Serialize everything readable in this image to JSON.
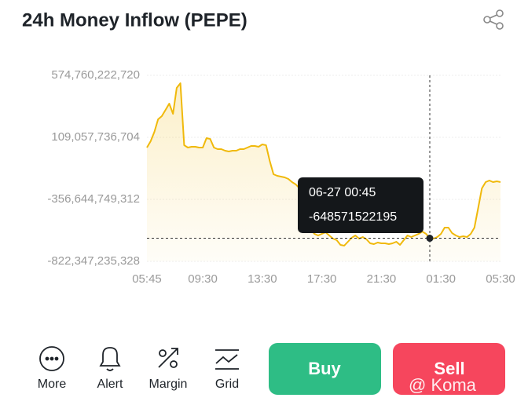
{
  "header": {
    "title": "24h Money Inflow (PEPE)"
  },
  "chart_data": {
    "type": "line",
    "ylim": [
      -822347235328,
      574760222720
    ],
    "yticks": [
      {
        "value": -822347235328,
        "label": "-822,347,235,328"
      },
      {
        "value": -356644749312,
        "label": "-356,644,749,312"
      },
      {
        "value": 109057736704,
        "label": "109,057,736,704"
      },
      {
        "value": 574760222720,
        "label": "574,760,222,720"
      }
    ],
    "grid": true,
    "categories": [
      "05:45",
      null,
      null,
      null,
      null,
      null,
      null,
      null,
      null,
      null,
      null,
      null,
      null,
      null,
      null,
      "09:30",
      null,
      null,
      null,
      null,
      null,
      null,
      null,
      null,
      null,
      null,
      null,
      null,
      null,
      null,
      null,
      "13:30",
      null,
      null,
      null,
      null,
      null,
      null,
      null,
      null,
      null,
      null,
      null,
      null,
      null,
      null,
      null,
      "17:30",
      null,
      null,
      null,
      null,
      null,
      null,
      null,
      null,
      null,
      null,
      null,
      null,
      null,
      null,
      null,
      "21:30",
      null,
      null,
      null,
      null,
      null,
      null,
      null,
      null,
      null,
      null,
      null,
      null,
      null,
      null,
      null,
      "01:30",
      null,
      null,
      null,
      null,
      null,
      null,
      null,
      null,
      null,
      null,
      null,
      null,
      null,
      null,
      null,
      "05:30"
    ],
    "series": [
      {
        "color": "#f0b90b",
        "values": [
          32400000000.0,
          79600000000.0,
          150400000000.0,
          244600000000.0,
          268200000000.0,
          315400000000.0,
          362500000000.0,
          285900000000.0,
          480400000000.0,
          515800000000.0,
          50100000000.0,
          32400000000.0,
          38300000000.0,
          38300000000.0,
          32400000000.0,
          32400000000.0,
          103200000000.0,
          97300000000.0,
          32400000000.0,
          20600000000.0,
          20600000000.0,
          8900000000.0,
          3000000000.0,
          8900000000.0,
          8900000000.0,
          20600000000.0,
          20600000000.0,
          32400000000.0,
          44200000000.0,
          44200000000.0,
          38300000000.0,
          56000000000.0,
          50100000000.0,
          -67800000000.0,
          -168000000000.0,
          -179800000000.0,
          -185700000000.0,
          -191600000000.0,
          -203400000000.0,
          -226900000000.0,
          -244600000000.0,
          -274100000000.0,
          -450900000000.0,
          -539400000000.0,
          -580600000000.0,
          -616000000000.0,
          -627800000000.0,
          -616000000000.0,
          -604200000000.0,
          -627800000000.0,
          -651400000000.0,
          -663200000000.0,
          -698500000000.0,
          -704400000000.0,
          -674900000000.0,
          -645500000000.0,
          -627800000000.0,
          -651400000000.0,
          -639600000000.0,
          -657300000000.0,
          -686700000000.0,
          -692600000000.0,
          -680800000000.0,
          -686700000000.0,
          -686700000000.0,
          -692600000000.0,
          -686700000000.0,
          -674900000000.0,
          -698500000000.0,
          -663200000000.0,
          -627800000000.0,
          -639600000000.0,
          -627800000000.0,
          -616000000000.0,
          -598300000000.0,
          -616000000000.0,
          -648571522195,
          -651400000000.0,
          -639600000000.0,
          -616000000000.0,
          -568800000000.0,
          -568800000000.0,
          -610100000000.0,
          -627800000000.0,
          -639600000000.0,
          -633700000000.0,
          -639600000000.0,
          -616000000000.0,
          -568800000000.0,
          -421500000000.0,
          -274100000000.0,
          -226900000000.0,
          -215100000000.0,
          -226900000000.0,
          -221000000000.0,
          -226900000000.0
        ]
      }
    ],
    "tooltip": {
      "label": "06-27 00:45",
      "value": -648571522195
    }
  },
  "toolbar": [
    "More",
    "Alert",
    "Margin",
    "Grid"
  ],
  "buttons": {
    "buy": "Buy",
    "sell": "Sell"
  },
  "watermark": "@ Koma"
}
